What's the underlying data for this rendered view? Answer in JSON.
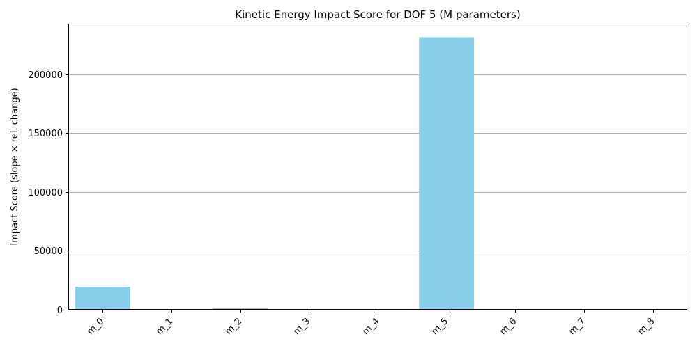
{
  "chart_data": {
    "type": "bar",
    "title": "Kinetic Energy Impact Score for DOF 5 (M parameters)",
    "xlabel": "",
    "ylabel": "Impact Score (slope × rel. change)",
    "categories": [
      "m_0",
      "m_1",
      "m_2",
      "m_3",
      "m_4",
      "m_5",
      "m_6",
      "m_7",
      "m_8"
    ],
    "values": [
      19500,
      400,
      1200,
      300,
      300,
      231500,
      300,
      300,
      300
    ],
    "ylim": [
      0,
      243000
    ],
    "yticks": [
      0,
      50000,
      100000,
      150000,
      200000
    ],
    "ytick_labels": [
      "0",
      "50000",
      "100000",
      "150000",
      "200000"
    ],
    "grid": "y-major",
    "bar_color": "#87CEEB",
    "grid_color": "#b0b0b0",
    "legend": "none"
  }
}
